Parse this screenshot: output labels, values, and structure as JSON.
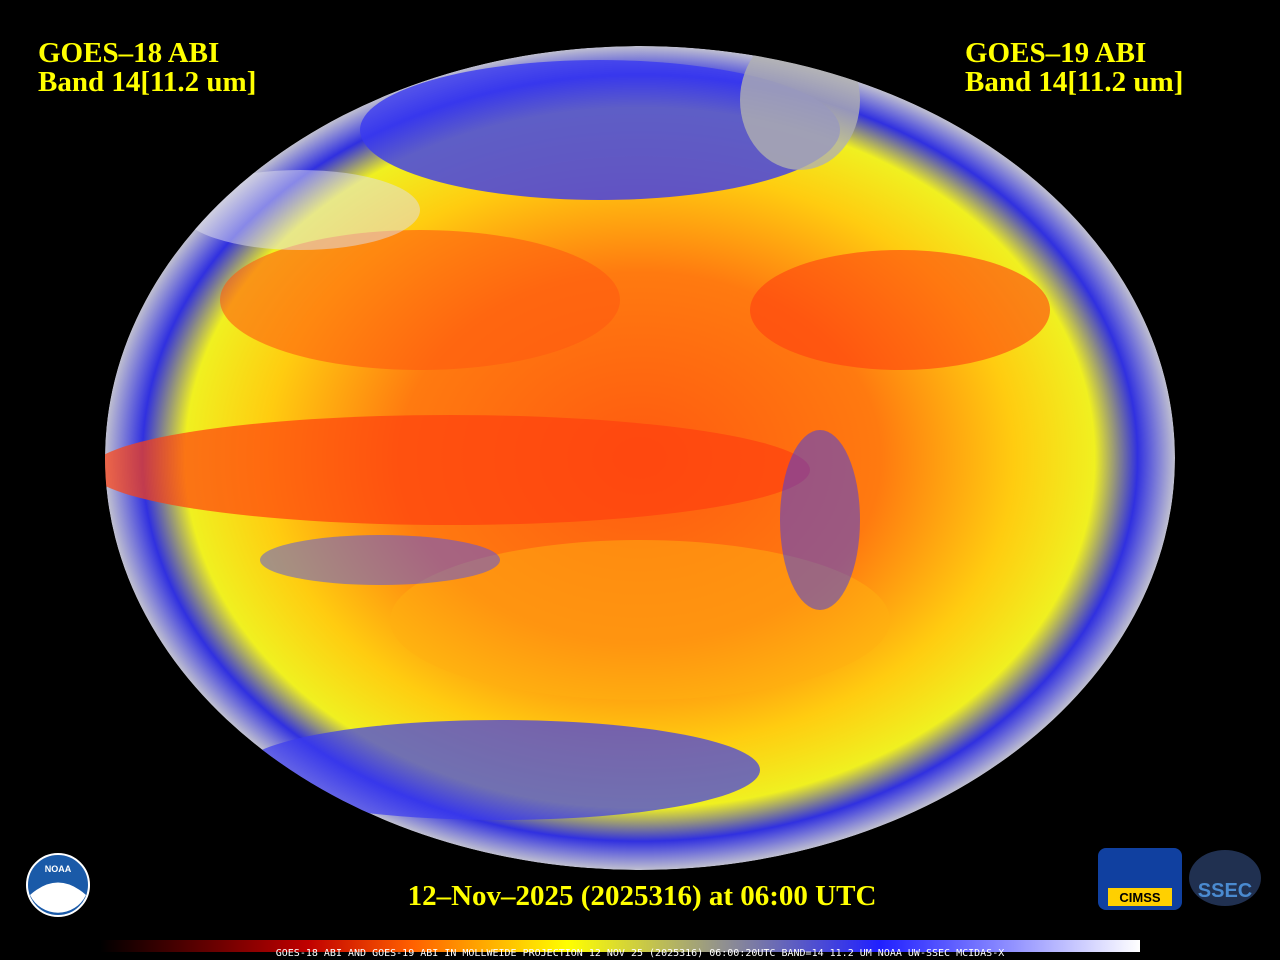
{
  "left_title": {
    "line1": "GOES–18 ABI",
    "line2": "Band 14[11.2 um]"
  },
  "right_title": {
    "line1": "GOES–19 ABI",
    "line2": "Band 14[11.2 um]"
  },
  "timestamp": "12–Nov–2025 (2025316) at 06:00 UTC",
  "caption": "GOES-18 ABI AND GOES-19 ABI IN MOLLWEIDE PROJECTION 12 NOV 25 (2025316) 06:00:20UTC BAND=14 11.2 UM NOAA UW-SSEC MCIDAS-X",
  "logos": {
    "noaa": "NOAA",
    "cimss": "CIMSS",
    "ssec": "SSEC"
  }
}
